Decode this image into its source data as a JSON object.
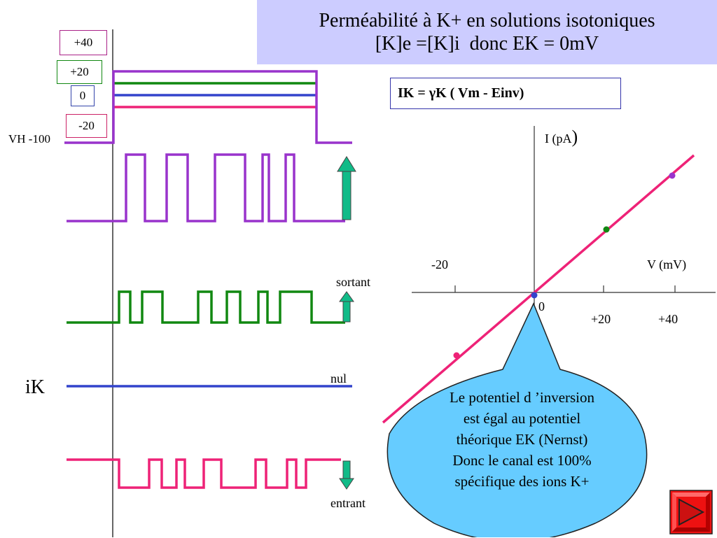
{
  "title": {
    "line1": "Perméabilité à K+ en solutions isotoniques",
    "line2": "[K]e =[K]i  donc EK = 0mV"
  },
  "voltage_steps": {
    "plus40": "+40",
    "plus20": "+20",
    "zero": "0",
    "minus20": "-20",
    "holding": "VH -100"
  },
  "current_trace": {
    "ik_label": "iK",
    "outward_label": "sortant",
    "null_label": "nul",
    "inward_label": "entrant"
  },
  "formula": "IK = γK ( Vm - Einv)",
  "iv_graph": {
    "y_axis_label": "I (pA",
    "y_axis_paren": ")",
    "x_axis_label": "V (mV)",
    "tick_minus20": "-20",
    "tick_zero": "0",
    "tick_plus20": "+20",
    "tick_plus40": "+40"
  },
  "bubble": {
    "line1": "Le potentiel d ’inversion",
    "line2": "est égal au potentiel",
    "line3": "théorique EK (Nernst)",
    "line4": "Donc le canal est 100%",
    "line5": "spécifique des ions K+"
  },
  "colors": {
    "purple": "#9933cc",
    "green": "#118811",
    "blue": "#3344cc",
    "pink": "#ee2277",
    "arrow_teal": "#11bb88",
    "bubble_fill": "#66ccff",
    "title_bg": "#ccccff",
    "next_button": "#ee1111"
  },
  "icons": {
    "outward_arrow": "arrow-up-icon",
    "inward_arrow": "arrow-down-icon",
    "next": "play-triangle-icon"
  }
}
